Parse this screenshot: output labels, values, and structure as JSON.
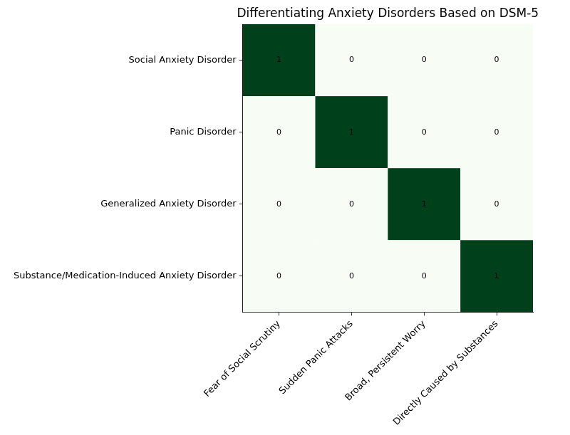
{
  "chart_data": {
    "type": "heatmap",
    "title": "Differentiating Anxiety Disorders Based on DSM-5",
    "x_categories": [
      "Fear of Social Scrutiny",
      "Sudden Panic Attacks",
      "Broad, Persistent Worry",
      "Directly Caused by Substances"
    ],
    "y_categories": [
      "Social Anxiety Disorder",
      "Panic Disorder",
      "Generalized Anxiety Disorder",
      "Substance/Medication-Induced Anxiety Disorder"
    ],
    "cells": [
      [
        1,
        0,
        0,
        0
      ],
      [
        0,
        1,
        0,
        0
      ],
      [
        0,
        0,
        1,
        0
      ],
      [
        0,
        0,
        0,
        1
      ]
    ],
    "data_labels": true,
    "grid": true
  }
}
